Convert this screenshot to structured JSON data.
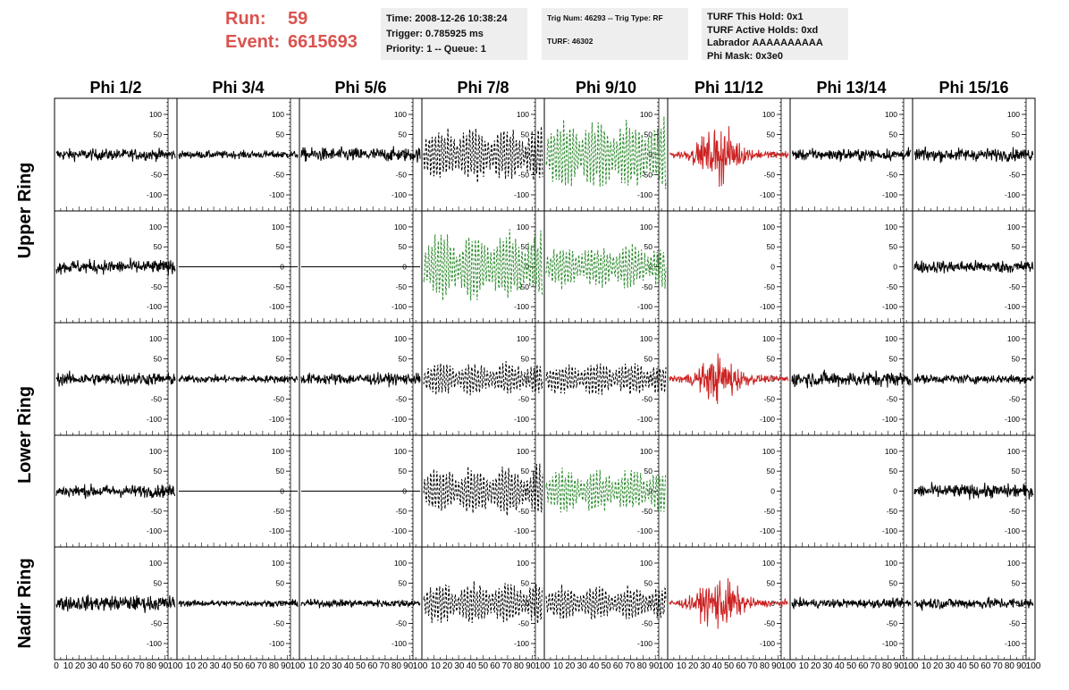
{
  "header": {
    "run_label": "Run:",
    "run_value": "59",
    "event_label": "Event:",
    "event_value": "6615693",
    "time": "Time: 2008-12-26 10:38:24",
    "trigger": "Trigger: 0.785925 ms",
    "priority": "Priority: 1 -- Queue: 1",
    "trig_num": "Trig Num: 46293 -- Trig Type: RF",
    "turf": "TURF: 46302",
    "turf_this_hold": "TURF This Hold: 0x1",
    "turf_active_holds": "TURF Active Holds: 0xd",
    "labrador": "Labrador AAAAAAAAAA",
    "phi_mask": "Phi Mask: 0x3e0"
  },
  "colors": {
    "header_text": "#d9534f",
    "normal": "#000000",
    "triggered": "#2e8b2e",
    "highlight": "#cc2222"
  },
  "chart_data": {
    "type": "line",
    "columns": [
      "Phi 1/2",
      "Phi 3/4",
      "Phi 5/6",
      "Phi 7/8",
      "Phi 9/10",
      "Phi 11/12",
      "Phi 13/14",
      "Phi 15/16"
    ],
    "rows": [
      "Upper Ring",
      "Upper Ring",
      "Lower Ring",
      "Lower Ring",
      "Nadir Ring"
    ],
    "ring_labels": [
      "Upper Ring",
      "Lower Ring",
      "Nadir Ring"
    ],
    "ylim": [
      -140,
      140
    ],
    "yticks": [
      -100,
      -50,
      0,
      50,
      100
    ],
    "xlim": [
      0,
      100
    ],
    "xticks": [
      0,
      10,
      20,
      30,
      40,
      50,
      60,
      70,
      80,
      90,
      100
    ],
    "x_tick_labels": [
      "0",
      "10",
      "20",
      "30",
      "40",
      "50",
      "60",
      "70",
      "80",
      "90",
      "100"
    ],
    "panels": [
      [
        {
          "style": "noise",
          "color": "black",
          "amp": 18
        },
        {
          "style": "noise",
          "color": "black",
          "amp": 12
        },
        {
          "style": "noise",
          "color": "black",
          "amp": 22
        },
        {
          "style": "dashed",
          "color": "black",
          "amp": 65
        },
        {
          "style": "dashed",
          "color": "green",
          "amp": 80
        },
        {
          "style": "pulse",
          "color": "red",
          "amp": 40
        },
        {
          "style": "noise",
          "color": "black",
          "amp": 18
        },
        {
          "style": "noise",
          "color": "black",
          "amp": 20
        }
      ],
      [
        {
          "style": "noise",
          "color": "black",
          "amp": 22
        },
        {
          "style": "flat",
          "color": "black",
          "amp": 0
        },
        {
          "style": "flat",
          "color": "black",
          "amp": 0
        },
        {
          "style": "dashed",
          "color": "green",
          "amp": 80
        },
        {
          "style": "dashed",
          "color": "green",
          "amp": 50
        },
        {
          "style": "none",
          "color": "black",
          "amp": 0
        },
        {
          "style": "none",
          "color": "black",
          "amp": 0
        },
        {
          "style": "noise",
          "color": "black",
          "amp": 20
        }
      ],
      [
        {
          "style": "noise",
          "color": "black",
          "amp": 20
        },
        {
          "style": "noise",
          "color": "black",
          "amp": 12
        },
        {
          "style": "noise",
          "color": "black",
          "amp": 18
        },
        {
          "style": "dashed",
          "color": "black",
          "amp": 38
        },
        {
          "style": "dashed",
          "color": "black",
          "amp": 38
        },
        {
          "style": "pulse",
          "color": "red",
          "amp": 35
        },
        {
          "style": "noise",
          "color": "black",
          "amp": 24
        },
        {
          "style": "noise",
          "color": "black",
          "amp": 14
        }
      ],
      [
        {
          "style": "noise",
          "color": "black",
          "amp": 20
        },
        {
          "style": "flat",
          "color": "black",
          "amp": 0
        },
        {
          "style": "flat",
          "color": "black",
          "amp": 0
        },
        {
          "style": "dashed",
          "color": "black",
          "amp": 60
        },
        {
          "style": "dashed",
          "color": "green",
          "amp": 50
        },
        {
          "style": "none",
          "color": "black",
          "amp": 0
        },
        {
          "style": "none",
          "color": "black",
          "amp": 0
        },
        {
          "style": "noise",
          "color": "black",
          "amp": 22
        }
      ],
      [
        {
          "style": "noise",
          "color": "black",
          "amp": 24
        },
        {
          "style": "noise",
          "color": "black",
          "amp": 10
        },
        {
          "style": "noise",
          "color": "black",
          "amp": 12
        },
        {
          "style": "dashed",
          "color": "black",
          "amp": 50
        },
        {
          "style": "dashed",
          "color": "black",
          "amp": 40
        },
        {
          "style": "pulse",
          "color": "red",
          "amp": 40
        },
        {
          "style": "noise",
          "color": "black",
          "amp": 14
        },
        {
          "style": "noise",
          "color": "black",
          "amp": 18
        }
      ]
    ]
  }
}
